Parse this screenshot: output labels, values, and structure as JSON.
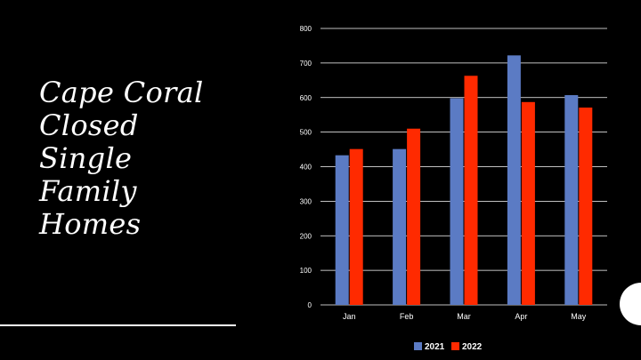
{
  "slide": {
    "title_lines": [
      "Cape Coral",
      "Closed",
      "Single",
      "Family",
      "Homes"
    ]
  },
  "colors": {
    "background": "#000000",
    "series_2021": "#5b7bc4",
    "series_2022": "#ff2a00",
    "text": "#ffffff"
  },
  "chart_data": {
    "type": "bar",
    "title": "",
    "xlabel": "",
    "ylabel": "",
    "categories": [
      "Jan",
      "Feb",
      "Mar",
      "Apr",
      "May"
    ],
    "series": [
      {
        "name": "2021",
        "values": [
          433,
          451,
          598,
          722,
          607
        ]
      },
      {
        "name": "2022",
        "values": [
          451,
          510,
          663,
          587,
          571
        ]
      }
    ],
    "ylim": [
      0,
      800
    ],
    "yticks": [
      0,
      100,
      200,
      300,
      400,
      500,
      600,
      700,
      800
    ],
    "grid": true,
    "legend_position": "bottom"
  }
}
